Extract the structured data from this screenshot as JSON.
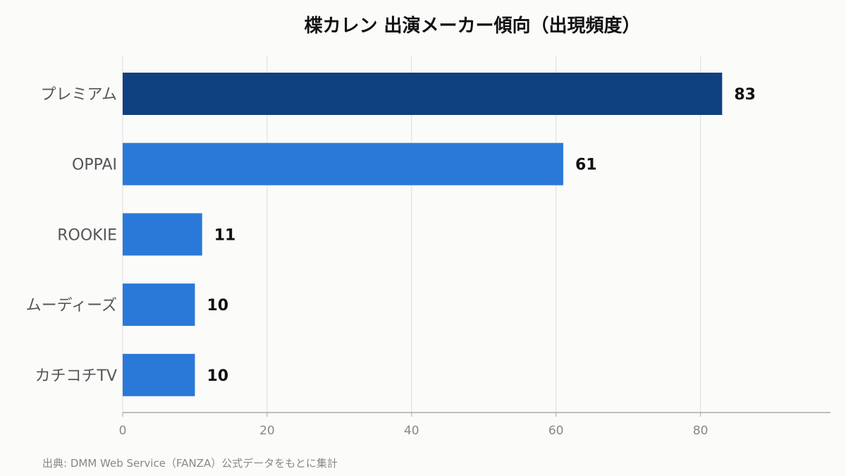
{
  "chart_data": {
    "type": "bar",
    "orientation": "horizontal",
    "title": "楪カレン 出演メーカー傾向（出現頻度）",
    "categories": [
      "プレミアム",
      "OPPAI",
      "ROOKIE",
      "ムーディーズ",
      "カチコチTV"
    ],
    "values": [
      83,
      61,
      11,
      10,
      10
    ],
    "xlim": [
      0,
      98
    ],
    "xticks": [
      0,
      20,
      40,
      60,
      80
    ],
    "grid": true,
    "colors": {
      "highlight_bar": "#0f4080",
      "bar": "#2a79d8",
      "grid": "#dddddd",
      "axis": "#aaaaaa"
    }
  },
  "source_note": "出典: DMM Web Service（FANZA）公式データをもとに集計"
}
